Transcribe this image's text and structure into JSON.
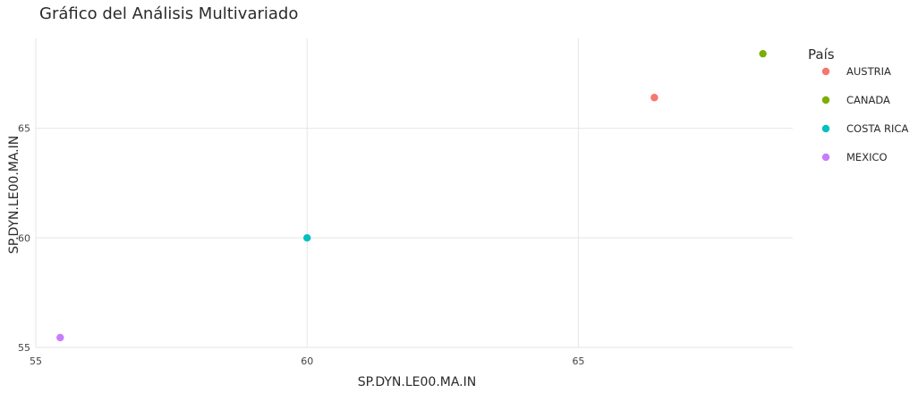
{
  "chart_data": {
    "type": "scatter",
    "title": "Gráfico del Análisis Multivariado",
    "xlabel": "SP.DYN.LE00.MA.IN",
    "ylabel": "SP.DYN.LE00.MA.IN",
    "xlim": [
      55.0,
      68.95
    ],
    "ylim": [
      55.0,
      69.1
    ],
    "x_ticks": [
      55,
      60,
      65
    ],
    "y_ticks": [
      55,
      60,
      65
    ],
    "grid": true,
    "legend": {
      "title": "País",
      "placement": "right"
    },
    "series": [
      {
        "name": "AUSTRIA",
        "color": "#F8766D",
        "x": 66.4,
        "y": 66.4
      },
      {
        "name": "CANADA",
        "color": "#7CAE00",
        "x": 68.4,
        "y": 68.4
      },
      {
        "name": "COSTA RICA",
        "color": "#00BFC4",
        "x": 60.0,
        "y": 60.0
      },
      {
        "name": "MEXICO",
        "color": "#C77CFF",
        "x": 55.45,
        "y": 55.45
      }
    ]
  }
}
